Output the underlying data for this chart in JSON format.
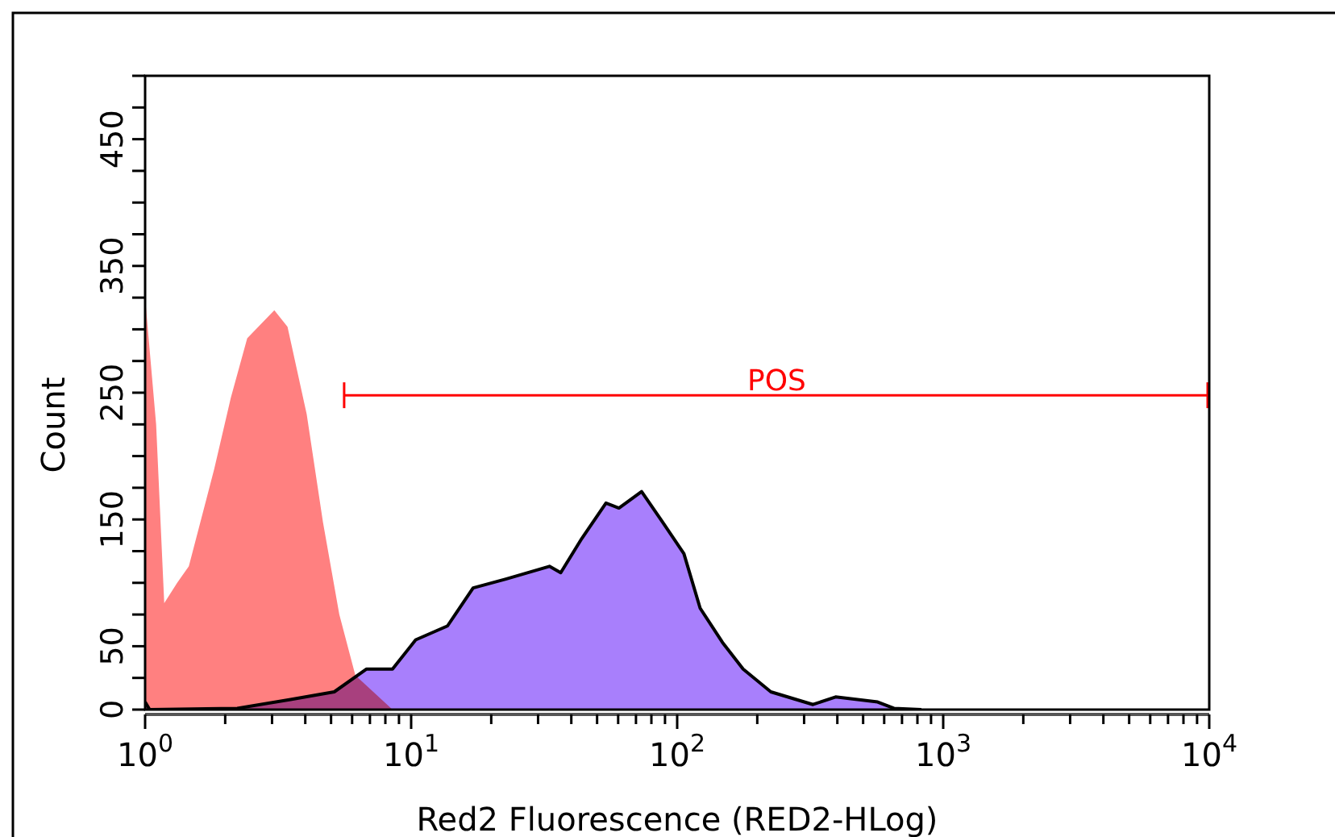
{
  "chart_data": {
    "type": "area",
    "xlabel": "Red2 Fluorescence (RED2-HLog)",
    "ylabel": "Count",
    "log": "x",
    "xlim": [
      1,
      10000
    ],
    "xticks": [
      {
        "value": 1,
        "label": "10$^{0}$"
      },
      {
        "value": 2,
        "label": null
      },
      {
        "value": 3,
        "label": null
      },
      {
        "value": 4,
        "label": null
      },
      {
        "value": 5,
        "label": null
      },
      {
        "value": 6,
        "label": null
      },
      {
        "value": 7,
        "label": null
      },
      {
        "value": 8,
        "label": null
      },
      {
        "value": 9,
        "label": null
      },
      {
        "value": 10,
        "label": "10$^{1}$"
      },
      {
        "value": 20,
        "label": null
      },
      {
        "value": 30,
        "label": null
      },
      {
        "value": 40,
        "label": null
      },
      {
        "value": 50,
        "label": null
      },
      {
        "value": 60,
        "label": null
      },
      {
        "value": 70,
        "label": null
      },
      {
        "value": 80,
        "label": null
      },
      {
        "value": 90,
        "label": null
      },
      {
        "value": 100,
        "label": "10$^{2}$"
      },
      {
        "value": 200,
        "label": null
      },
      {
        "value": 300,
        "label": null
      },
      {
        "value": 400,
        "label": null
      },
      {
        "value": 500,
        "label": null
      },
      {
        "value": 600,
        "label": null
      },
      {
        "value": 700,
        "label": null
      },
      {
        "value": 800,
        "label": null
      },
      {
        "value": 900,
        "label": null
      },
      {
        "value": 1000,
        "label": "10$^{3}$"
      },
      {
        "value": 2000,
        "label": null
      },
      {
        "value": 3000,
        "label": null
      },
      {
        "value": 4000,
        "label": null
      },
      {
        "value": 5000,
        "label": null
      },
      {
        "value": 6000,
        "label": null
      },
      {
        "value": 7000,
        "label": null
      },
      {
        "value": 8000,
        "label": null
      },
      {
        "value": 9000,
        "label": null
      },
      {
        "value": 10000,
        "label": "10$^{4}$"
      }
    ],
    "ylim": [
      0,
      500
    ],
    "yticks": [
      0,
      {
        "value": 25,
        "label": null
      },
      50,
      {
        "value": 75,
        "label": null
      },
      {
        "value": 100,
        "label": null
      },
      {
        "value": 125,
        "label": null
      },
      150,
      {
        "value": 175,
        "label": null
      },
      {
        "value": 200,
        "label": null
      },
      {
        "value": 225,
        "label": null
      },
      250,
      {
        "value": 275,
        "label": null
      },
      {
        "value": 300,
        "label": null
      },
      {
        "value": 325,
        "label": null
      },
      350,
      {
        "value": 375,
        "label": null
      },
      {
        "value": 400,
        "label": null
      },
      {
        "value": 425,
        "label": null
      },
      450,
      {
        "value": 475,
        "label": null
      },
      {
        "value": 500,
        "label": null
      }
    ],
    "grid": false,
    "series": [
      {
        "color": "#ff8080",
        "x": [
          1,
          1.1,
          1.18,
          1.32,
          1.46,
          1.82,
          2.1,
          2.42,
          3.06,
          3.43,
          4.05,
          4.66,
          5.37,
          6.17,
          7.4,
          8.51
        ],
        "values": [
          325,
          225,
          84,
          100,
          113,
          190,
          246,
          293,
          315,
          302,
          233,
          148,
          75,
          27,
          null,
          0
        ]
      },
      {
        "color": "#a87ffc",
        "line_style": "solid",
        "x": [
          1,
          1.04,
          2.22,
          3.52,
          5.14,
          6.8,
          8.51,
          10.4,
          13.7,
          17.1,
          22.7,
          33.1,
          36.5,
          43.8,
          54,
          60.4,
          73.5,
          88.1,
          106,
          122,
          148,
          177,
          225,
          324,
          394,
          567,
          653,
          828
        ],
        "values": [
          6,
          0,
          1,
          8,
          14,
          32,
          32,
          55,
          66,
          96,
          103,
          113,
          108,
          135,
          163,
          159,
          172,
          148,
          123,
          80,
          53,
          32,
          14,
          4,
          10,
          6,
          1,
          0
        ]
      },
      {
        "type": "line",
        "name": "POS",
        "color": "#ff0000",
        "x": [
          5.6,
          10000
        ],
        "values": [
          248,
          248
        ]
      }
    ]
  }
}
